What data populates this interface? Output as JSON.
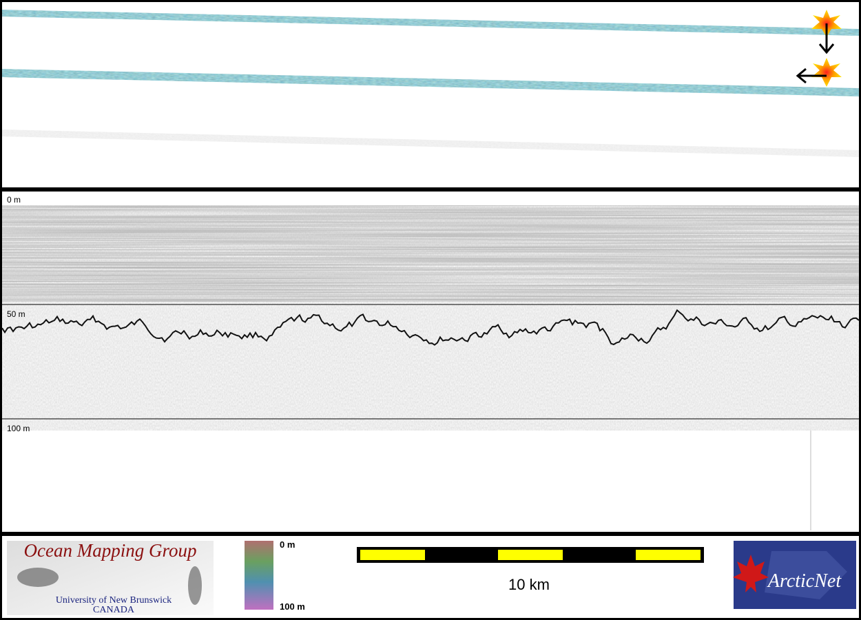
{
  "profile": {
    "depth_labels": [
      "0 m",
      "50 m",
      "100 m"
    ]
  },
  "footer": {
    "logo": {
      "title": "Ocean Mapping Group",
      "line1": "University of New Brunswick",
      "line2": "CANADA"
    },
    "colorbar": {
      "top": "0 m",
      "bottom": "100 m"
    },
    "scale_bar": {
      "label": "10 km"
    },
    "partner": "ArcticNet"
  }
}
